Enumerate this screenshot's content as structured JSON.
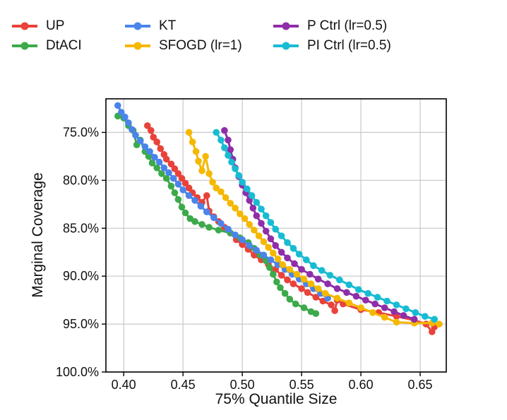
{
  "chart_data": {
    "type": "line",
    "title": "",
    "xlabel": "75% Quantile Size",
    "ylabel": "Marginal Coverage",
    "xlim": [
      0.385,
      0.672
    ],
    "ylim": [
      100.0,
      71.5
    ],
    "y_inverted": true,
    "x_ticks": [
      0.4,
      0.45,
      0.5,
      0.55,
      0.6,
      0.65
    ],
    "x_tick_labels": [
      "0.40",
      "0.45",
      "0.50",
      "0.55",
      "0.60",
      "0.65"
    ],
    "y_ticks": [
      75,
      80,
      85,
      90,
      95,
      100
    ],
    "y_tick_labels": [
      "75.0%",
      "80.0%",
      "85.0%",
      "90.0%",
      "95.0%",
      "100.0%"
    ],
    "grid": true,
    "legend_placement": "top",
    "series": [
      {
        "name": "UP",
        "color": "#e8423a",
        "points": [
          [
            0.42,
            74.3
          ],
          [
            0.423,
            74.8
          ],
          [
            0.425,
            75.5
          ],
          [
            0.428,
            76.0
          ],
          [
            0.431,
            76.7
          ],
          [
            0.434,
            77.3
          ],
          [
            0.436,
            77.8
          ],
          [
            0.44,
            78.3
          ],
          [
            0.443,
            78.8
          ],
          [
            0.446,
            79.3
          ],
          [
            0.449,
            79.8
          ],
          [
            0.452,
            80.3
          ],
          [
            0.455,
            80.8
          ],
          [
            0.458,
            81.3
          ],
          [
            0.462,
            81.8
          ],
          [
            0.466,
            82.3
          ],
          [
            0.47,
            81.6
          ],
          [
            0.472,
            83.2
          ],
          [
            0.476,
            83.8
          ],
          [
            0.48,
            84.3
          ],
          [
            0.485,
            84.9
          ],
          [
            0.49,
            85.5
          ],
          [
            0.495,
            86.2
          ],
          [
            0.5,
            86.7
          ],
          [
            0.505,
            87.2
          ],
          [
            0.51,
            87.8
          ],
          [
            0.516,
            88.3
          ],
          [
            0.522,
            88.8
          ],
          [
            0.528,
            89.3
          ],
          [
            0.533,
            89.9
          ],
          [
            0.538,
            90.4
          ],
          [
            0.543,
            90.8
          ],
          [
            0.55,
            91.3
          ],
          [
            0.555,
            91.7
          ],
          [
            0.562,
            92.2
          ],
          [
            0.568,
            92.6
          ],
          [
            0.575,
            93.0
          ],
          [
            0.578,
            93.6
          ],
          [
            0.58,
            92.5
          ],
          [
            0.585,
            92.9
          ],
          [
            0.6,
            93.5
          ],
          [
            0.615,
            93.8
          ],
          [
            0.63,
            94.2
          ],
          [
            0.645,
            94.6
          ],
          [
            0.655,
            95.0
          ],
          [
            0.66,
            95.8
          ],
          [
            0.662,
            95.3
          ]
        ]
      },
      {
        "name": "DtACI",
        "color": "#3caa4a",
        "points": [
          [
            0.395,
            73.3
          ],
          [
            0.4,
            73.5
          ],
          [
            0.404,
            74.3
          ],
          [
            0.408,
            74.8
          ],
          [
            0.411,
            76.3
          ],
          [
            0.414,
            75.8
          ],
          [
            0.418,
            77.0
          ],
          [
            0.421,
            77.5
          ],
          [
            0.424,
            78.2
          ],
          [
            0.428,
            78.7
          ],
          [
            0.432,
            79.3
          ],
          [
            0.436,
            79.8
          ],
          [
            0.44,
            80.6
          ],
          [
            0.443,
            81.3
          ],
          [
            0.446,
            82.0
          ],
          [
            0.449,
            82.8
          ],
          [
            0.452,
            83.4
          ],
          [
            0.456,
            84.0
          ],
          [
            0.46,
            84.3
          ],
          [
            0.466,
            84.6
          ],
          [
            0.472,
            84.9
          ],
          [
            0.48,
            85.2
          ],
          [
            0.49,
            85.5
          ],
          [
            0.498,
            86.0
          ],
          [
            0.505,
            86.5
          ],
          [
            0.51,
            87.1
          ],
          [
            0.515,
            87.8
          ],
          [
            0.52,
            88.4
          ],
          [
            0.523,
            89.1
          ],
          [
            0.526,
            89.8
          ],
          [
            0.529,
            90.6
          ],
          [
            0.532,
            91.2
          ],
          [
            0.536,
            91.8
          ],
          [
            0.54,
            92.4
          ],
          [
            0.545,
            92.9
          ],
          [
            0.552,
            93.3
          ],
          [
            0.558,
            93.7
          ],
          [
            0.562,
            93.9
          ]
        ]
      },
      {
        "name": "KT",
        "color": "#4a84ea",
        "points": [
          [
            0.395,
            72.2
          ],
          [
            0.398,
            72.9
          ],
          [
            0.401,
            73.4
          ],
          [
            0.404,
            74.0
          ],
          [
            0.407,
            74.7
          ],
          [
            0.41,
            75.3
          ],
          [
            0.414,
            75.9
          ],
          [
            0.418,
            76.5
          ],
          [
            0.422,
            77.0
          ],
          [
            0.426,
            77.6
          ],
          [
            0.43,
            78.1
          ],
          [
            0.434,
            78.7
          ],
          [
            0.438,
            79.2
          ],
          [
            0.442,
            79.8
          ],
          [
            0.446,
            80.4
          ],
          [
            0.45,
            81.0
          ],
          [
            0.455,
            81.6
          ],
          [
            0.46,
            82.1
          ],
          [
            0.465,
            82.7
          ],
          [
            0.47,
            83.3
          ],
          [
            0.476,
            83.9
          ],
          [
            0.482,
            84.5
          ],
          [
            0.488,
            85.1
          ],
          [
            0.494,
            85.7
          ],
          [
            0.5,
            86.2
          ],
          [
            0.506,
            86.8
          ],
          [
            0.512,
            87.3
          ],
          [
            0.518,
            87.8
          ],
          [
            0.524,
            88.3
          ],
          [
            0.53,
            88.8
          ],
          [
            0.536,
            89.3
          ],
          [
            0.542,
            89.8
          ],
          [
            0.548,
            90.3
          ],
          [
            0.554,
            90.8
          ],
          [
            0.56,
            91.3
          ],
          [
            0.566,
            91.8
          ],
          [
            0.572,
            92.3
          ]
        ]
      },
      {
        "name": "SFOGD (lr=1)",
        "color": "#f5b800",
        "points": [
          [
            0.455,
            75.0
          ],
          [
            0.458,
            76.0
          ],
          [
            0.461,
            77.0
          ],
          [
            0.463,
            78.0
          ],
          [
            0.466,
            79.0
          ],
          [
            0.469,
            77.5
          ],
          [
            0.472,
            79.3
          ],
          [
            0.475,
            80.2
          ],
          [
            0.478,
            80.8
          ],
          [
            0.482,
            81.2
          ],
          [
            0.486,
            81.8
          ],
          [
            0.49,
            82.4
          ],
          [
            0.494,
            82.9
          ],
          [
            0.498,
            83.5
          ],
          [
            0.502,
            84.0
          ],
          [
            0.506,
            84.6
          ],
          [
            0.51,
            85.2
          ],
          [
            0.514,
            85.8
          ],
          [
            0.518,
            86.4
          ],
          [
            0.522,
            87.0
          ],
          [
            0.526,
            87.6
          ],
          [
            0.53,
            88.2
          ],
          [
            0.534,
            88.8
          ],
          [
            0.54,
            89.3
          ],
          [
            0.546,
            89.8
          ],
          [
            0.552,
            90.3
          ],
          [
            0.558,
            90.8
          ],
          [
            0.564,
            91.3
          ],
          [
            0.57,
            91.8
          ],
          [
            0.58,
            92.3
          ],
          [
            0.59,
            92.8
          ],
          [
            0.6,
            93.3
          ],
          [
            0.61,
            93.8
          ],
          [
            0.62,
            94.3
          ],
          [
            0.63,
            94.8
          ],
          [
            0.645,
            94.9
          ],
          [
            0.66,
            94.9
          ],
          [
            0.666,
            95.0
          ]
        ]
      },
      {
        "name": "P Ctrl (lr=0.5)",
        "color": "#8e2ea8",
        "points": [
          [
            0.485,
            74.8
          ],
          [
            0.488,
            75.8
          ],
          [
            0.49,
            76.8
          ],
          [
            0.492,
            77.8
          ],
          [
            0.494,
            78.7
          ],
          [
            0.497,
            79.6
          ],
          [
            0.5,
            80.5
          ],
          [
            0.503,
            81.3
          ],
          [
            0.506,
            82.1
          ],
          [
            0.509,
            82.9
          ],
          [
            0.512,
            83.7
          ],
          [
            0.516,
            84.5
          ],
          [
            0.52,
            85.3
          ],
          [
            0.524,
            86.1
          ],
          [
            0.528,
            86.8
          ],
          [
            0.533,
            87.5
          ],
          [
            0.538,
            88.1
          ],
          [
            0.544,
            88.7
          ],
          [
            0.55,
            89.3
          ],
          [
            0.557,
            89.8
          ],
          [
            0.564,
            90.3
          ],
          [
            0.572,
            90.8
          ],
          [
            0.58,
            91.3
          ],
          [
            0.588,
            91.7
          ],
          [
            0.596,
            92.1
          ],
          [
            0.604,
            92.5
          ],
          [
            0.612,
            92.9
          ],
          [
            0.62,
            93.3
          ],
          [
            0.628,
            93.7
          ],
          [
            0.636,
            94.1
          ],
          [
            0.645,
            94.5
          ]
        ]
      },
      {
        "name": "PI Ctrl (lr=0.5)",
        "color": "#17bcd3",
        "points": [
          [
            0.478,
            75.0
          ],
          [
            0.482,
            75.8
          ],
          [
            0.485,
            76.6
          ],
          [
            0.488,
            77.4
          ],
          [
            0.491,
            78.1
          ],
          [
            0.494,
            78.8
          ],
          [
            0.497,
            79.5
          ],
          [
            0.5,
            80.2
          ],
          [
            0.504,
            80.9
          ],
          [
            0.508,
            81.6
          ],
          [
            0.512,
            82.3
          ],
          [
            0.516,
            83.0
          ],
          [
            0.52,
            83.7
          ],
          [
            0.524,
            84.4
          ],
          [
            0.528,
            85.1
          ],
          [
            0.533,
            85.8
          ],
          [
            0.538,
            86.5
          ],
          [
            0.543,
            87.1
          ],
          [
            0.548,
            87.7
          ],
          [
            0.554,
            88.3
          ],
          [
            0.56,
            88.9
          ],
          [
            0.567,
            89.4
          ],
          [
            0.574,
            89.9
          ],
          [
            0.582,
            90.4
          ],
          [
            0.59,
            90.9
          ],
          [
            0.598,
            91.4
          ],
          [
            0.606,
            91.8
          ],
          [
            0.614,
            92.2
          ],
          [
            0.622,
            92.6
          ],
          [
            0.63,
            93.0
          ],
          [
            0.638,
            93.4
          ],
          [
            0.646,
            93.8
          ],
          [
            0.654,
            94.2
          ],
          [
            0.662,
            94.5
          ]
        ]
      }
    ]
  }
}
